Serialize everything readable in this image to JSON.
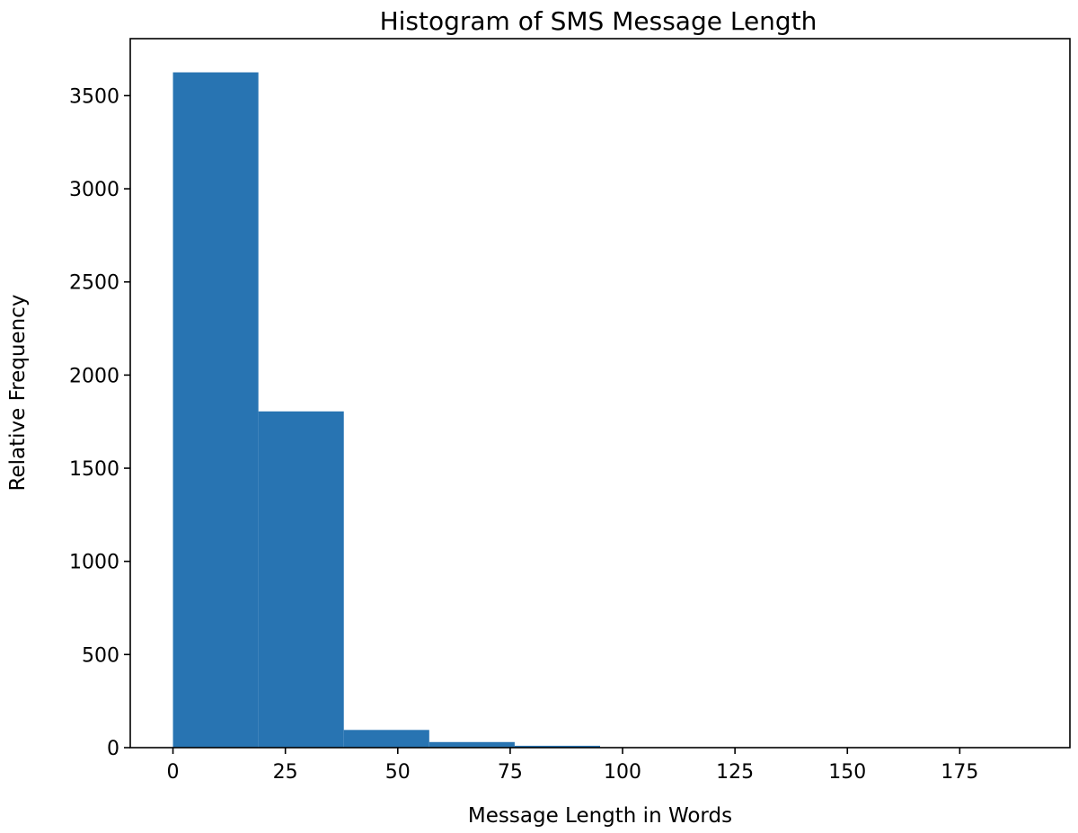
{
  "chart_data": {
    "type": "bar",
    "title": "Histogram of SMS Message Length",
    "xlabel": "Message Length in Words",
    "ylabel": "Relative Frequency",
    "bins": [
      {
        "start": 0,
        "end": 19,
        "count": 3625
      },
      {
        "start": 19,
        "end": 38,
        "count": 1805
      },
      {
        "start": 38,
        "end": 57,
        "count": 95
      },
      {
        "start": 57,
        "end": 76,
        "count": 30
      },
      {
        "start": 76,
        "end": 95,
        "count": 10
      },
      {
        "start": 95,
        "end": 114,
        "count": 2
      },
      {
        "start": 114,
        "end": 133,
        "count": 1
      },
      {
        "start": 133,
        "end": 152,
        "count": 1
      },
      {
        "start": 152,
        "end": 171,
        "count": 0
      },
      {
        "start": 171,
        "end": 190,
        "count": 1
      }
    ],
    "xlim": [
      -9.5,
      199.5
    ],
    "ylim": [
      0,
      3806
    ],
    "xticks": [
      0,
      25,
      50,
      75,
      100,
      125,
      150,
      175
    ],
    "yticks": [
      0,
      500,
      1000,
      1500,
      2000,
      2500,
      3000,
      3500
    ],
    "bar_color": "#2874b2",
    "grid": false,
    "legend": false
  }
}
